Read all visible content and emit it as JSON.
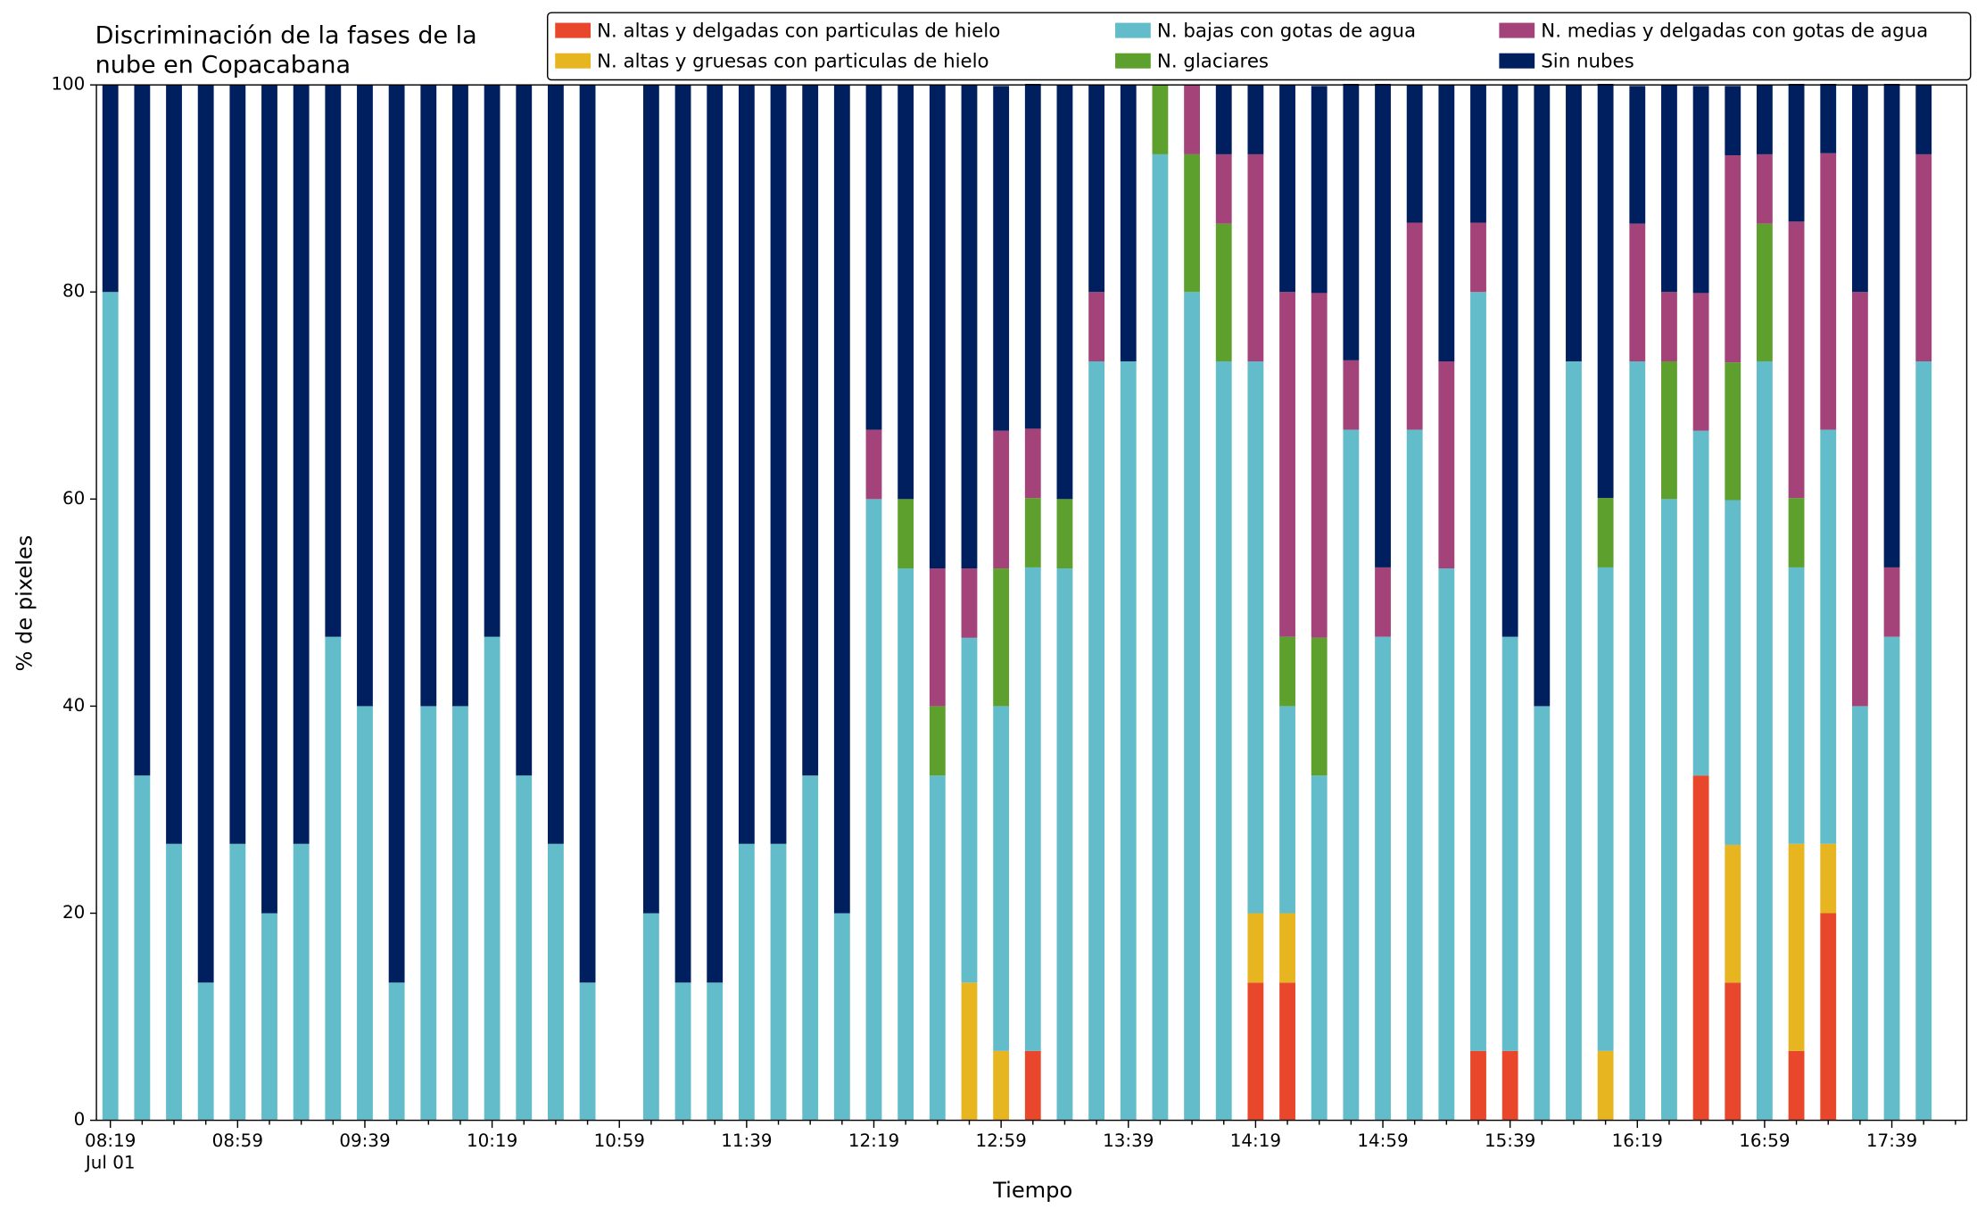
{
  "chart_data": {
    "type": "stacked_bar",
    "title": [
      "Discriminación de la fases de la",
      "nube en Copacabana"
    ],
    "xlabel": "Tiempo",
    "ylabel": "% de pixeles",
    "x_date": "Jul 01",
    "categories": [
      "08:19",
      null,
      null,
      null,
      "08:59",
      null,
      null,
      null,
      "09:39",
      null,
      null,
      null,
      "10:19",
      null,
      null,
      null,
      "10:59",
      null,
      null,
      null,
      "11:39",
      null,
      null,
      null,
      "12:19",
      null,
      null,
      null,
      "12:59",
      null,
      null,
      null,
      "13:39",
      null,
      null,
      null,
      "14:19",
      null,
      null,
      null,
      "14:59",
      null,
      null,
      null,
      "15:39",
      null,
      null,
      null,
      "16:19",
      null,
      null,
      null,
      "16:59",
      null,
      null,
      null,
      "17:39",
      null
    ],
    "ylim": [
      0,
      100
    ],
    "yticks": [
      0,
      20,
      40,
      60,
      80,
      100
    ],
    "legend_columns": 3,
    "series": [
      {
        "name": "N. altas y delgadas con particulas de hielo",
        "color": "#e8472c",
        "values": [
          0,
          0,
          0,
          0,
          0,
          0,
          0,
          0,
          0,
          0,
          0,
          0,
          0,
          0,
          0,
          0,
          null,
          0,
          0,
          0,
          0,
          0,
          0,
          0,
          0,
          0,
          0,
          0,
          0,
          6.7,
          0,
          0,
          0,
          0,
          0,
          0,
          13.3,
          13.3,
          0,
          0,
          0,
          0,
          0,
          6.7,
          6.7,
          0,
          0,
          0,
          0,
          0,
          33.3,
          13.3,
          0,
          6.7,
          20,
          0,
          0,
          0
        ]
      },
      {
        "name": "N. altas y gruesas con particulas de hielo",
        "color": "#e6b520",
        "values": [
          0,
          0,
          0,
          0,
          0,
          0,
          0,
          0,
          0,
          0,
          0,
          0,
          0,
          0,
          0,
          0,
          null,
          0,
          0,
          0,
          0,
          0,
          0,
          0,
          0,
          0,
          0,
          13.3,
          6.7,
          0,
          0,
          0,
          0,
          0,
          0,
          0,
          6.7,
          6.7,
          0,
          0,
          0,
          0,
          0,
          0,
          0,
          0,
          0,
          6.7,
          0,
          0,
          0,
          13.3,
          0,
          20,
          6.7,
          0,
          0,
          0
        ]
      },
      {
        "name": "N. bajas con gotas de agua",
        "color": "#63bcc9",
        "values": [
          80,
          33.3,
          26.7,
          13.3,
          26.7,
          20,
          26.7,
          46.7,
          40,
          13.3,
          40,
          40,
          46.7,
          33.3,
          26.7,
          13.3,
          null,
          20,
          13.3,
          13.3,
          26.7,
          26.7,
          33.3,
          20,
          60,
          53.3,
          33.3,
          33.3,
          33.3,
          46.7,
          53.3,
          73.3,
          73.3,
          93.3,
          80,
          73.3,
          53.3,
          20,
          33.3,
          66.7,
          46.7,
          66.7,
          53.3,
          73.3,
          40,
          40,
          73.3,
          46.7,
          73.3,
          60,
          33.3,
          33.3,
          73.3,
          26.7,
          40,
          40,
          46.7,
          73.3
        ]
      },
      {
        "name": "N. glaciares",
        "color": "#5ea02e",
        "values": [
          0,
          0,
          0,
          0,
          0,
          0,
          0,
          0,
          0,
          0,
          0,
          0,
          0,
          0,
          0,
          0,
          null,
          0,
          0,
          0,
          0,
          0,
          0,
          0,
          0,
          6.7,
          6.7,
          0,
          13.3,
          6.7,
          6.7,
          0,
          0,
          6.7,
          13.3,
          13.3,
          0,
          6.7,
          13.3,
          0,
          0,
          0,
          0,
          0,
          0,
          0,
          0,
          6.7,
          0,
          13.3,
          0,
          13.3,
          13.3,
          6.7,
          0,
          0,
          0,
          0
        ]
      },
      {
        "name": "N. medias y delgadas con gotas de agua",
        "color": "#a4437a",
        "values": [
          0,
          0,
          0,
          0,
          0,
          0,
          0,
          0,
          0,
          0,
          0,
          0,
          0,
          0,
          0,
          0,
          null,
          0,
          0,
          0,
          0,
          0,
          0,
          0,
          6.7,
          0,
          13.3,
          6.7,
          13.3,
          6.7,
          0,
          6.7,
          0,
          0,
          6.7,
          6.7,
          20,
          33.3,
          33.3,
          6.7,
          6.7,
          20,
          20,
          6.7,
          0,
          0,
          0,
          0,
          13.3,
          6.7,
          13.3,
          20,
          6.7,
          26.7,
          26.7,
          40,
          6.7,
          20
        ]
      },
      {
        "name": "Sin nubes",
        "color": "#001f5f",
        "values": [
          20,
          66.7,
          73.3,
          86.7,
          73.3,
          80,
          73.3,
          53.3,
          60,
          86.7,
          60,
          60,
          53.3,
          66.7,
          73.3,
          86.7,
          null,
          80,
          86.7,
          86.7,
          73.3,
          73.3,
          66.7,
          80,
          33.3,
          40,
          46.7,
          46.7,
          33.3,
          33.3,
          40,
          20,
          26.7,
          0,
          0,
          6.7,
          6.7,
          20,
          20,
          26.7,
          46.7,
          13.3,
          26.7,
          13.3,
          53.3,
          60,
          26.7,
          40,
          13.3,
          20,
          20,
          6.7,
          6.7,
          13.3,
          6.7,
          20,
          46.7,
          6.7
        ]
      }
    ]
  }
}
